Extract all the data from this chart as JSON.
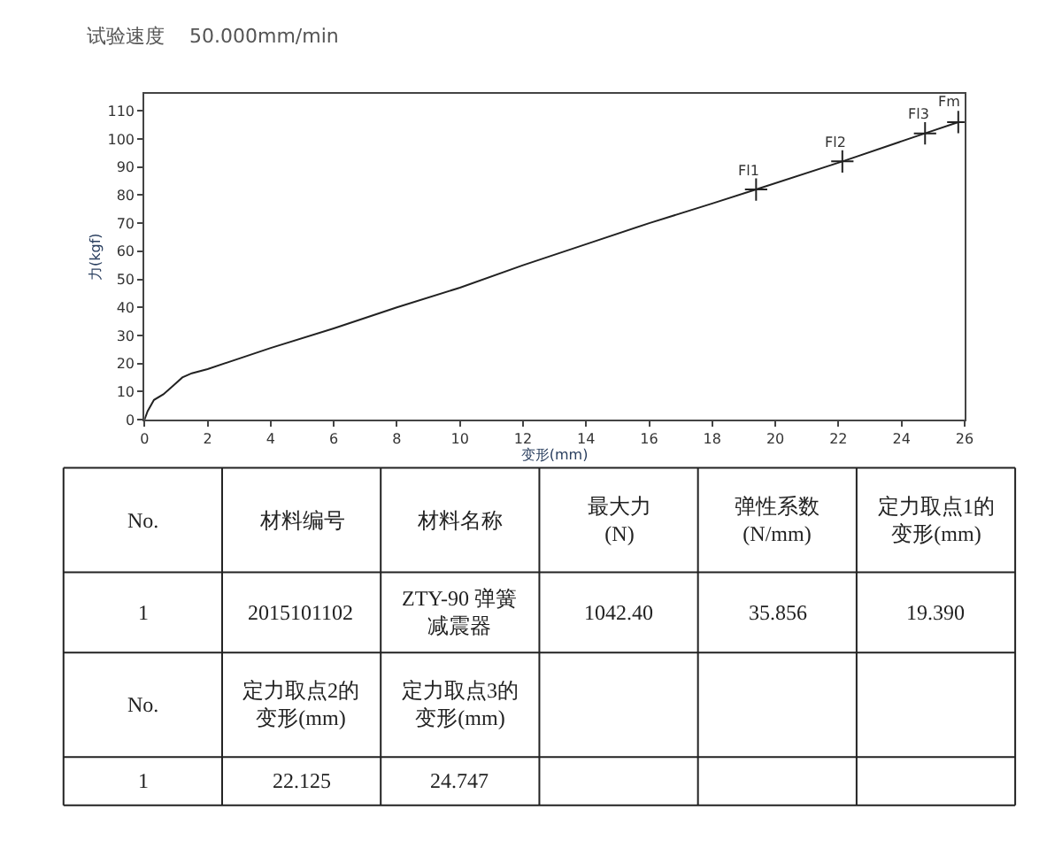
{
  "chart_data": [
    {
      "type": "line",
      "title": "试验速度    50.000mm/min",
      "xlabel": "变形(mm)",
      "ylabel": "力(kgf)",
      "xlim": [
        0,
        26
      ],
      "xticks": [
        0,
        2,
        4,
        6,
        8,
        10,
        12,
        14,
        16,
        18,
        20,
        22,
        24,
        26
      ],
      "ylim": [
        0,
        116
      ],
      "yticks": [
        0,
        10,
        20,
        30,
        40,
        50,
        60,
        70,
        80,
        90,
        100,
        110
      ],
      "legend": false,
      "series": [
        {
          "color": "#222222",
          "line_style": "solid",
          "marker": "none",
          "x": [
            0,
            0.1,
            0.3,
            0.6,
            0.9,
            1.2,
            1.5,
            2,
            4,
            6,
            8,
            10,
            12,
            14,
            16,
            18,
            19.39,
            22.125,
            24.747,
            25.8
          ],
          "values": [
            0,
            3,
            7,
            9,
            12,
            15,
            16.5,
            18,
            25.5,
            32.5,
            40,
            47,
            55,
            62.5,
            70,
            77,
            82,
            92,
            102,
            106
          ]
        },
        {
          "type": "scatter",
          "color": "#222222",
          "marker": "cross",
          "x": [
            19.39,
            22.125,
            24.747,
            25.8
          ],
          "values": [
            82,
            92,
            102,
            106
          ]
        }
      ],
      "annotations": [
        {
          "text": "Fl1",
          "x": 19.39,
          "y": 82
        },
        {
          "text": "Fl2",
          "x": 22.125,
          "y": 92
        },
        {
          "text": "Fl3",
          "x": 24.747,
          "y": 102
        },
        {
          "text": "Fm",
          "x": 25.8,
          "y": 106
        }
      ]
    },
    {
      "type": "other",
      "annotations": [
        "No.",
        "材料编号",
        "材料名称",
        "最大力\n(N)",
        "弹性系数\n(N/mm)",
        "定力取点1的变形(mm)",
        "1",
        "2015101102",
        "ZTY-90 弹簧减震器",
        "1042.40",
        "35.856",
        "19.390",
        "No.",
        "定力取点2的变形(mm)",
        "定力取点3的变形(mm)",
        null,
        null,
        null,
        "1",
        "22.125",
        "24.747",
        null,
        null,
        null
      ]
    }
  ]
}
